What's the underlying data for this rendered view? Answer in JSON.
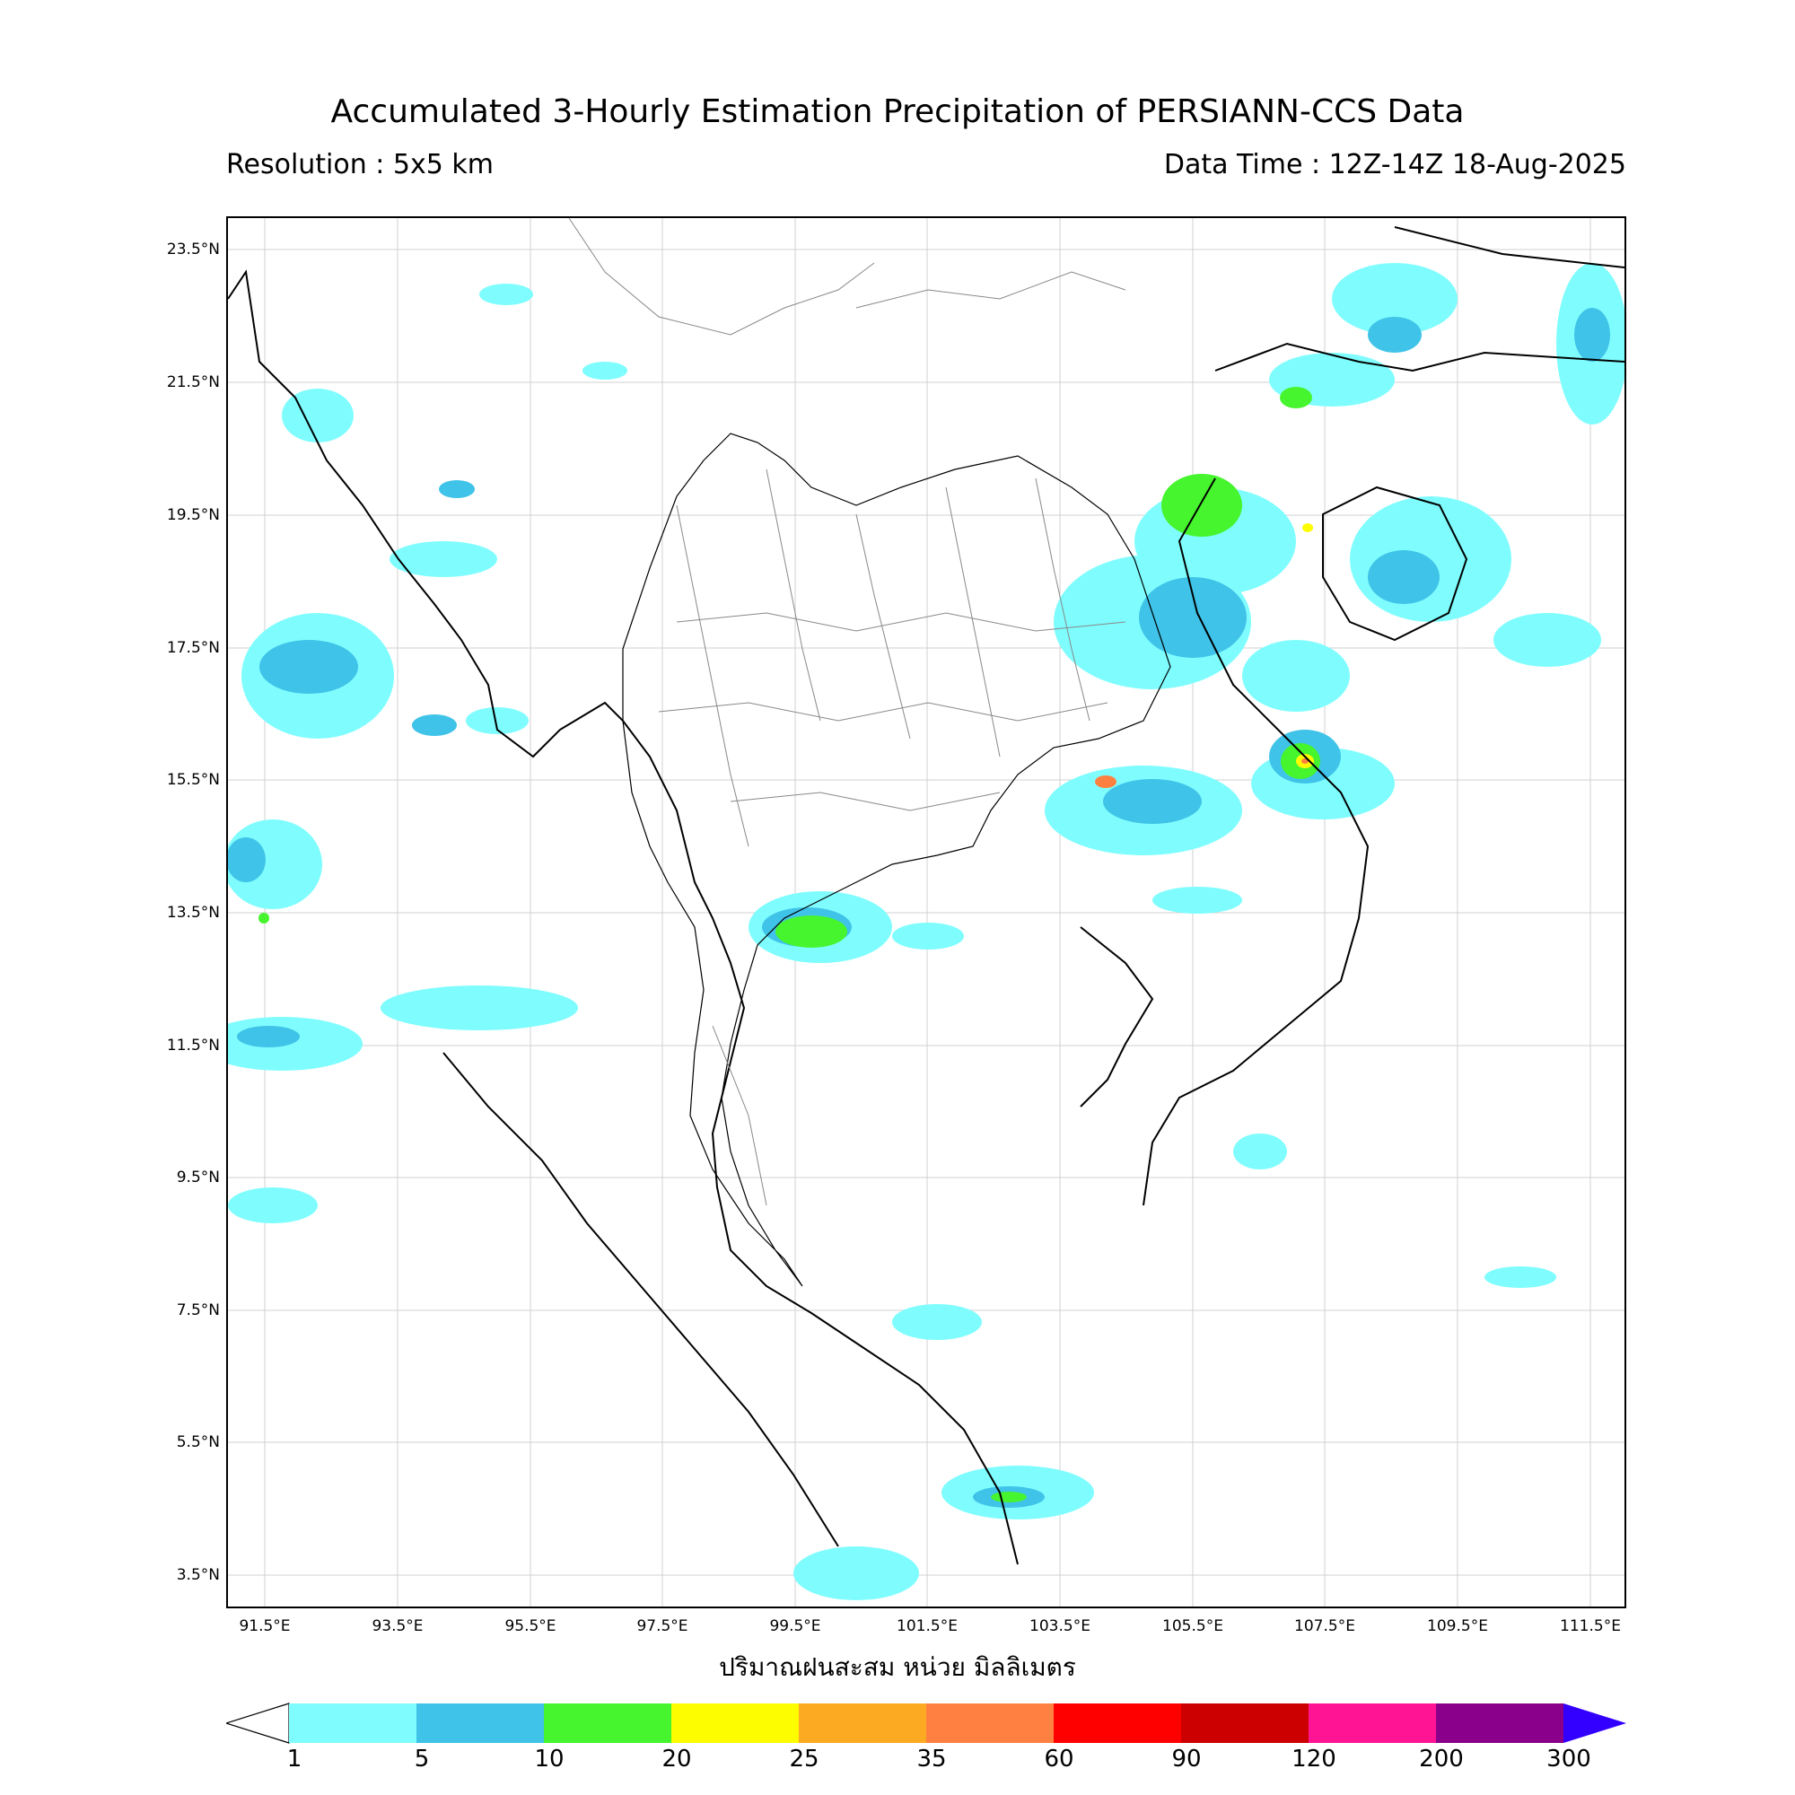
{
  "header": {
    "title": "Accumulated 3-Hourly Estimation Precipitation of PERSIANN-CCS Data",
    "resolution": "Resolution : 5x5 km",
    "data_time": "Data Time : 12Z-14Z 18-Aug-2025"
  },
  "map": {
    "lat_labels": [
      "23.5°N",
      "21.5°N",
      "19.5°N",
      "17.5°N",
      "15.5°N",
      "13.5°N",
      "11.5°N",
      "9.5°N",
      "7.5°N",
      "5.5°N",
      "3.5°N"
    ],
    "lon_labels": [
      "91.5°E",
      "93.5°E",
      "95.5°E",
      "97.5°E",
      "99.5°E",
      "101.5°E",
      "103.5°E",
      "105.5°E",
      "107.5°E",
      "109.5°E",
      "111.5°E"
    ],
    "xlabel": "ปริมาณฝนสะสม หน่วย มิลลิเมตร",
    "rain_colors": {
      "light": "#7ffdfe",
      "medium": "#3fc3e8",
      "heavy": "#46f52e",
      "very_heavy": "#fefd00",
      "extreme": "#ff8040"
    }
  },
  "colorbar": {
    "ticks": [
      "1",
      "5",
      "10",
      "20",
      "25",
      "35",
      "60",
      "90",
      "120",
      "200",
      "300"
    ],
    "colors": [
      "#7ffdfe",
      "#3fc3e8",
      "#46f52e",
      "#fefd00",
      "#fdaa23",
      "#ff8040",
      "#ff0000",
      "#cc0000",
      "#ff1493",
      "#8b008b"
    ],
    "over_color": "#3300ff",
    "under_color": "#ffffff"
  }
}
